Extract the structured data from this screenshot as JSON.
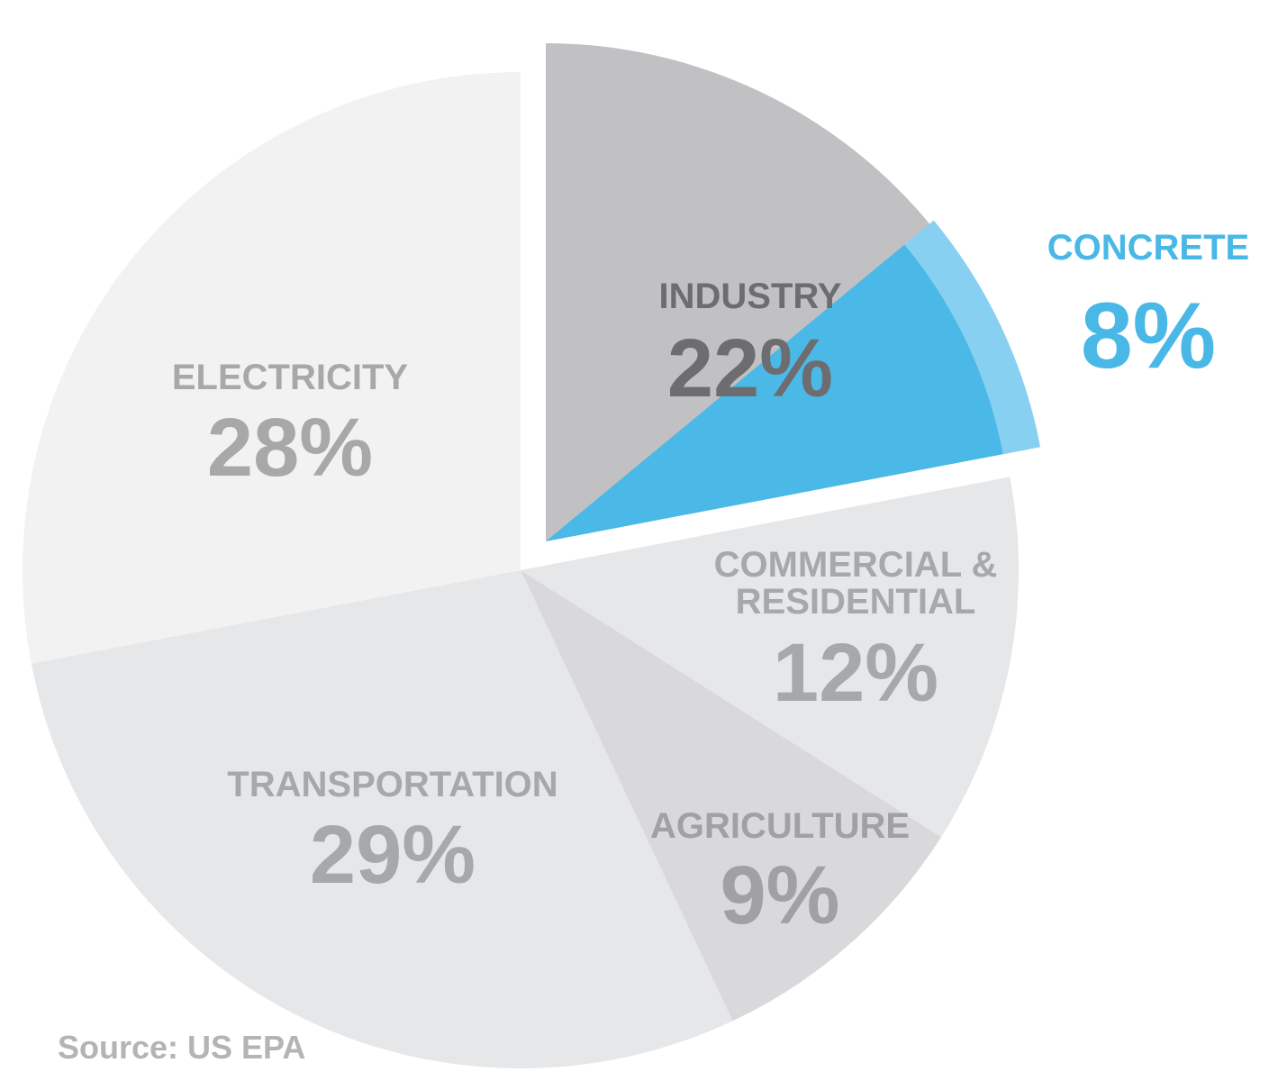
{
  "chart_data": {
    "type": "pie",
    "title": "",
    "slices": [
      {
        "label": "INDUSTRY",
        "value": 22,
        "value_label": "22%",
        "color": "#c1c1c3",
        "text_color": "#6d6d70"
      },
      {
        "label": "COMMERCIAL & RESIDENTIAL",
        "label_lines": [
          "COMMERCIAL &",
          "RESIDENTIAL"
        ],
        "value": 12,
        "value_label": "12%",
        "color": "#e6e7e8",
        "text_color": "#a7a8aa"
      },
      {
        "label": "AGRICULTURE",
        "value": 9,
        "value_label": "9%",
        "color": "#d9d9db",
        "text_color": "#a0a1a3"
      },
      {
        "label": "TRANSPORTATION",
        "value": 29,
        "value_label": "29%",
        "color": "#e6e7e8",
        "text_color": "#a7a8aa"
      },
      {
        "label": "ELECTRICITY",
        "value": 28,
        "value_label": "28%",
        "color": "#f2f2f2",
        "text_color": "#a7a8aa"
      }
    ],
    "highlight": {
      "parent": "INDUSTRY",
      "label": "CONCRETE",
      "value": 8,
      "value_label": "8%",
      "color": "#4bb9e7",
      "rim_color": "#87d0f1",
      "text_color": "#49b8e7"
    },
    "exploded": "INDUSTRY",
    "start_angle_deg": 0,
    "direction": "clockwise",
    "source": "Source: US EPA"
  }
}
